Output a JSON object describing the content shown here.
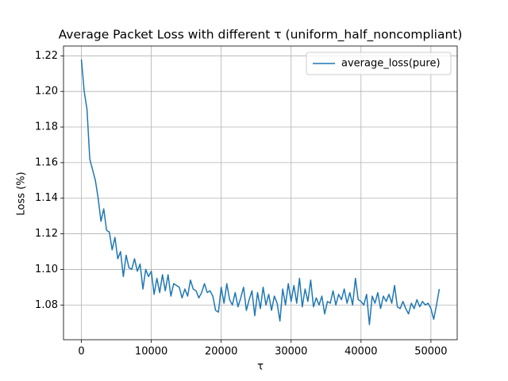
{
  "chart_data": {
    "type": "line",
    "title": "Average Packet Loss with different τ (uniform_half_noncompliant)",
    "xlabel": "τ",
    "ylabel": "Loss (%)",
    "x": [
      0,
      400,
      800,
      1200,
      1600,
      2000,
      2400,
      2800,
      3200,
      3600,
      4000,
      4400,
      4800,
      5200,
      5600,
      6000,
      6400,
      6800,
      7200,
      7600,
      8000,
      8400,
      8800,
      9200,
      9600,
      10000,
      10400,
      10800,
      11200,
      11600,
      12000,
      12400,
      12800,
      13200,
      13600,
      14000,
      14400,
      14800,
      15200,
      15600,
      16000,
      16400,
      16800,
      17200,
      17600,
      18000,
      18400,
      18800,
      19200,
      19600,
      20000,
      20400,
      20800,
      21200,
      21600,
      22000,
      22400,
      22800,
      23200,
      23600,
      24000,
      24400,
      24800,
      25200,
      25600,
      26000,
      26400,
      26800,
      27200,
      27600,
      28000,
      28400,
      28800,
      29200,
      29600,
      30000,
      30400,
      30800,
      31200,
      31600,
      32000,
      32400,
      32800,
      33200,
      33600,
      34000,
      34400,
      34800,
      35200,
      35600,
      36000,
      36400,
      36800,
      37200,
      37600,
      38000,
      38400,
      38800,
      39200,
      39600,
      40000,
      40400,
      40800,
      41200,
      41600,
      42000,
      42400,
      42800,
      43200,
      43600,
      44000,
      44400,
      44800,
      45200,
      45600,
      46000,
      46400,
      46800,
      47200,
      47600,
      48000,
      48400,
      48800,
      49200,
      49600,
      50000,
      50400,
      50800,
      51200
    ],
    "series": [
      {
        "name": "average_loss(pure)",
        "color": "#1f77b4",
        "values": [
          1.218,
          1.2,
          1.19,
          1.162,
          1.156,
          1.15,
          1.14,
          1.127,
          1.134,
          1.122,
          1.121,
          1.111,
          1.118,
          1.106,
          1.11,
          1.096,
          1.108,
          1.101,
          1.1,
          1.106,
          1.099,
          1.103,
          1.089,
          1.1,
          1.096,
          1.099,
          1.086,
          1.095,
          1.087,
          1.097,
          1.088,
          1.097,
          1.085,
          1.092,
          1.091,
          1.09,
          1.084,
          1.089,
          1.085,
          1.094,
          1.089,
          1.088,
          1.084,
          1.087,
          1.092,
          1.087,
          1.088,
          1.085,
          1.077,
          1.076,
          1.09,
          1.081,
          1.092,
          1.083,
          1.08,
          1.087,
          1.079,
          1.084,
          1.09,
          1.077,
          1.083,
          1.088,
          1.074,
          1.087,
          1.078,
          1.09,
          1.08,
          1.086,
          1.077,
          1.085,
          1.081,
          1.071,
          1.089,
          1.08,
          1.092,
          1.082,
          1.091,
          1.081,
          1.095,
          1.079,
          1.089,
          1.082,
          1.094,
          1.079,
          1.084,
          1.08,
          1.085,
          1.075,
          1.082,
          1.081,
          1.088,
          1.08,
          1.086,
          1.083,
          1.089,
          1.081,
          1.087,
          1.08,
          1.095,
          1.083,
          1.082,
          1.08,
          1.086,
          1.069,
          1.085,
          1.081,
          1.087,
          1.078,
          1.085,
          1.082,
          1.086,
          1.081,
          1.091,
          1.079,
          1.078,
          1.082,
          1.078,
          1.075,
          1.081,
          1.078,
          1.083,
          1.079,
          1.082,
          1.08,
          1.081,
          1.078,
          1.072,
          1.08,
          1.089
        ]
      }
    ],
    "xlim": [
      -2560,
      53760
    ],
    "xticks": [
      0,
      10000,
      20000,
      30000,
      40000,
      50000
    ],
    "ylim": [
      1.0605,
      1.2255
    ],
    "yticks": [
      1.08,
      {
        "value": 1.1,
        "label": "1.10"
      },
      1.12,
      1.14,
      1.16,
      1.18,
      {
        "value": 1.2,
        "label": "1.20"
      },
      1.22
    ],
    "grid": true,
    "legend": "upper right"
  }
}
